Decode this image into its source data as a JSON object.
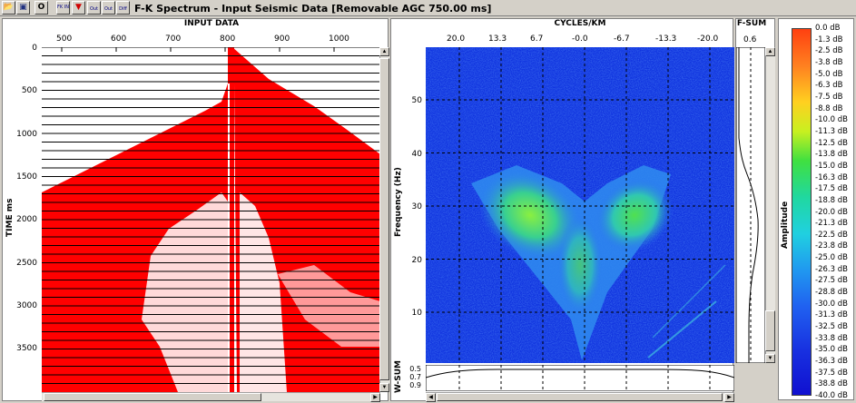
{
  "toolbar": {
    "buttons": [
      {
        "name": "open-folder-icon",
        "label": ""
      },
      {
        "name": "save-icon",
        "label": ""
      },
      {
        "name": "circle-o-icon",
        "label": "O"
      },
      {
        "name": "fk-in-icon",
        "label": "FK IN"
      },
      {
        "name": "heart-icon",
        "label": ""
      },
      {
        "name": "fk-out-icon",
        "label": "Out"
      },
      {
        "name": "fk-out2-icon",
        "label": "Out"
      },
      {
        "name": "fk-diff-icon",
        "label": "Diff"
      }
    ],
    "title": "F-K Spectrum - Input Seismic Data [Removable AGC 750.00 ms]"
  },
  "input_panel": {
    "header": "INPUT DATA",
    "x_ticks": [
      "500",
      "600",
      "700",
      "800",
      "900",
      "1000"
    ],
    "y_label": "TIME ms",
    "y_ticks": [
      "0",
      "500",
      "1000",
      "1500",
      "2000",
      "2500",
      "3000",
      "3500"
    ]
  },
  "fk_panel": {
    "header": "CYCLES/KM",
    "x_ticks": [
      "20.0",
      "13.3",
      "6.7",
      "-0.0",
      "-6.7",
      "-13.3",
      "-20.0"
    ],
    "y_label": "Frequency (Hz)",
    "y_ticks": [
      "50",
      "40",
      "30",
      "20",
      "10"
    ],
    "wsum_label": "W-SUM",
    "wsum_ticks": [
      "0.5",
      "0.7",
      "0.9"
    ]
  },
  "fsum_panel": {
    "header": "F-SUM",
    "tick": "0.6"
  },
  "legend": {
    "title": "Amplitude",
    "labels": [
      "0.0 dB",
      "-1.3 dB",
      "-2.5 dB",
      "-3.8 dB",
      "-5.0 dB",
      "-6.3 dB",
      "-7.5 dB",
      "-8.8 dB",
      "-10.0 dB",
      "-11.3 dB",
      "-12.5 dB",
      "-13.8 dB",
      "-15.0 dB",
      "-16.3 dB",
      "-17.5 dB",
      "-18.8 dB",
      "-20.0 dB",
      "-21.3 dB",
      "-22.5 dB",
      "-23.8 dB",
      "-25.0 dB",
      "-26.3 dB",
      "-27.5 dB",
      "-28.8 dB",
      "-30.0 dB",
      "-31.3 dB",
      "-32.5 dB",
      "-33.8 dB",
      "-35.0 dB",
      "-36.3 dB",
      "-37.5 dB",
      "-38.8 dB",
      "-40.0 dB"
    ]
  },
  "colors": {
    "trace_red": "#ff0000",
    "fk_background": "#1a3ee8",
    "fk_energy": "#33dd55"
  }
}
